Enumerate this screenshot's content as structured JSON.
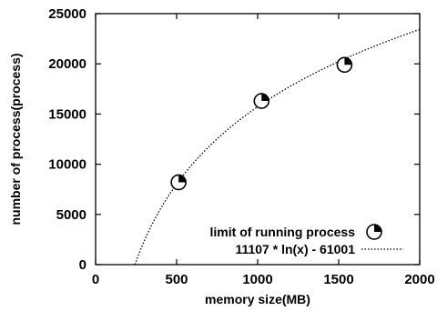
{
  "chart_data": {
    "type": "scatter",
    "xlabel": "memory size(MB)",
    "ylabel": "number of process(process)",
    "xlim": [
      0,
      2000
    ],
    "ylim": [
      0,
      25000
    ],
    "xticks": [
      "0",
      "500",
      "1000",
      "1500",
      "2000"
    ],
    "yticks": [
      "0",
      "5000",
      "10000",
      "15000",
      "20000",
      "25000"
    ],
    "grid": false,
    "legend_position": "bottom-right",
    "series": [
      {
        "name": "limit of running process",
        "kind": "points",
        "marker": "quarter-filled-circle",
        "points": [
          {
            "x": 512,
            "y": 8200
          },
          {
            "x": 1024,
            "y": 16300
          },
          {
            "x": 1536,
            "y": 19900
          }
        ]
      },
      {
        "name": "11107 * ln(x) - 61001",
        "kind": "fit-curve",
        "line_style": "dotted",
        "formula": {
          "a": 11107,
          "b": -61001
        }
      }
    ]
  }
}
